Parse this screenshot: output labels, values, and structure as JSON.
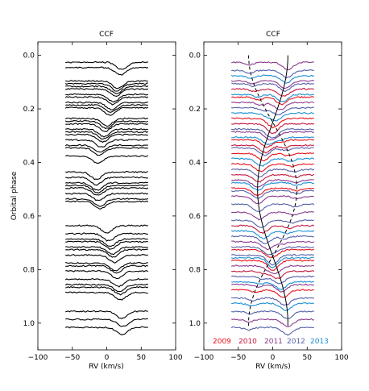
{
  "figure": {
    "ylabel": "Orbital phase",
    "y_ticks": [
      0.0,
      0.2,
      0.4,
      0.6,
      0.8,
      1.0
    ],
    "y_tick_labels": [
      "0.0",
      "0.2",
      "0.4",
      "0.6",
      "0.8",
      "1.0"
    ],
    "x_ticks": [
      -100,
      -50,
      0,
      50,
      100
    ],
    "x_tick_labels": [
      "−100",
      "−50",
      "0",
      "50",
      "100"
    ]
  },
  "colors": {
    "black": "#000000",
    "year_2009": "#e8121c",
    "year_2010": "#c4163f",
    "year_2011": "#8a3a8e",
    "year_2012": "#5560a8",
    "year_2013": "#1b8fd6",
    "axis": "#000000"
  },
  "chart_data": [
    {
      "type": "line",
      "title": "CCF",
      "xlabel": "RV (km/s)",
      "ylabel": "Orbital phase",
      "xlim": [
        -100,
        100
      ],
      "ylim": [
        1.1,
        -0.05
      ],
      "y_inverted": true,
      "grid": false,
      "profile_x_range": [
        -60,
        60
      ],
      "profile_phases": [
        0.02,
        0.04,
        0.09,
        0.1,
        0.11,
        0.12,
        0.14,
        0.15,
        0.17,
        0.18,
        0.19,
        0.23,
        0.24,
        0.25,
        0.27,
        0.28,
        0.29,
        0.31,
        0.33,
        0.34,
        0.37,
        0.43,
        0.45,
        0.47,
        0.48,
        0.49,
        0.51,
        0.53,
        0.54,
        0.63,
        0.66,
        0.68,
        0.69,
        0.71,
        0.72,
        0.74,
        0.77,
        0.78,
        0.8,
        0.83,
        0.85,
        0.86,
        0.88,
        0.95,
        0.98,
        1.01
      ],
      "primary_rv": [
        22,
        20,
        16,
        15,
        14,
        13,
        10,
        9,
        7,
        6,
        5,
        0,
        -1,
        -2,
        -4,
        -5,
        -6,
        -8,
        -10,
        -11,
        -13,
        -15,
        -15,
        -14,
        -13,
        -13,
        -12,
        -10,
        -9,
        0,
        3,
        5,
        6,
        8,
        9,
        11,
        13,
        14,
        15,
        17,
        18,
        19,
        20,
        22,
        23,
        22
      ]
    },
    {
      "type": "line",
      "title": "CCF",
      "xlabel": "RV (km/s)",
      "ylabel": "",
      "xlim": [
        -100,
        100
      ],
      "ylim": [
        1.1,
        -0.05
      ],
      "y_inverted": true,
      "grid": false,
      "legend_placement": "bottom",
      "series": [
        {
          "name": "2009",
          "color": "#e8121c",
          "phases": [
            0.15,
            0.23,
            0.31,
            0.36,
            0.4,
            0.49,
            0.72,
            0.76,
            0.87
          ]
        },
        {
          "name": "2010",
          "color": "#c4163f",
          "phases": [
            0.12,
            0.25,
            0.33,
            0.44,
            0.63,
            0.8
          ]
        },
        {
          "name": "2011",
          "color": "#8a3a8e",
          "phases": [
            0.02,
            0.09,
            0.17,
            0.28,
            0.46,
            0.52,
            0.58,
            0.69,
            0.78,
            0.85,
            0.98
          ]
        },
        {
          "name": "2012",
          "color": "#5560a8",
          "phases": [
            0.05,
            0.1,
            0.19,
            0.27,
            0.34,
            0.42,
            0.5,
            0.55,
            0.61,
            0.67,
            0.71,
            0.74,
            0.82,
            0.9,
            0.95,
            1.01
          ]
        },
        {
          "name": "2013",
          "color": "#1b8fd6",
          "phases": [
            0.07,
            0.14,
            0.21,
            0.3,
            0.38,
            0.47,
            0.65,
            0.75,
            0.84,
            0.92
          ]
        }
      ],
      "rv_curves": {
        "solid": {
          "rv_amplitude": 22,
          "phase_of_max": 0.0
        },
        "dashed": {
          "rv_amplitude": 35,
          "phase_of_max": 0.5
        }
      }
    }
  ]
}
